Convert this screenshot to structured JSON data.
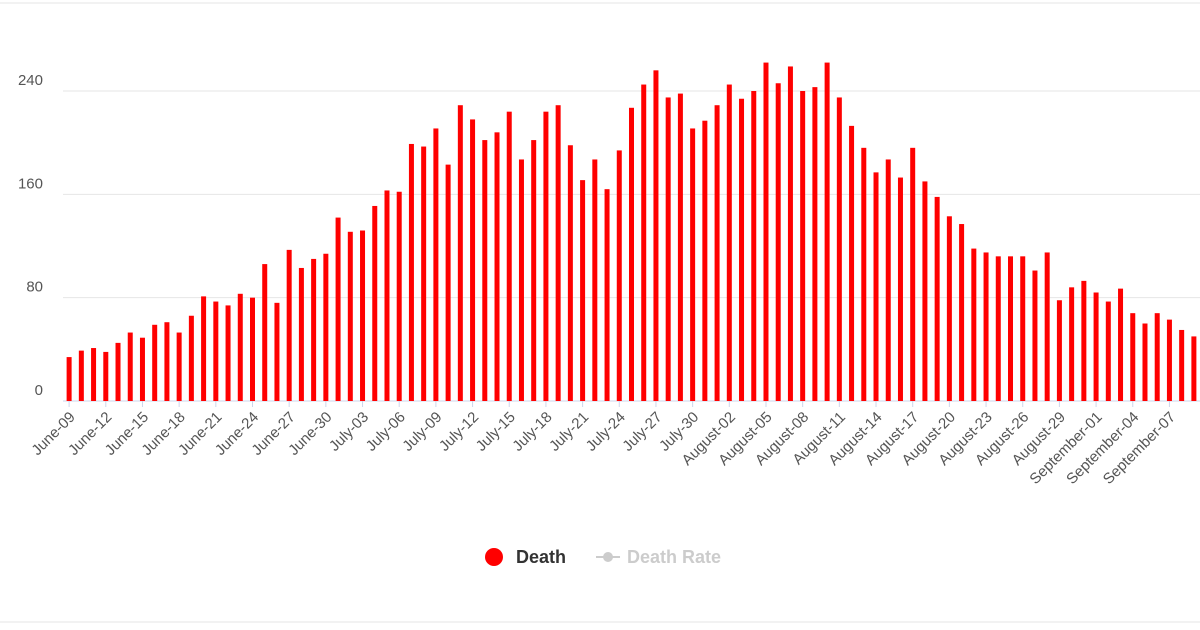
{
  "chart_data": {
    "type": "bar",
    "categories": [
      "June-09",
      null,
      null,
      "June-12",
      null,
      null,
      "June-15",
      null,
      null,
      "June-18",
      null,
      null,
      "June-21",
      null,
      null,
      "June-24",
      null,
      null,
      "June-27",
      null,
      null,
      "June-30",
      null,
      null,
      "July-03",
      null,
      null,
      "July-06",
      null,
      null,
      "July-09",
      null,
      null,
      "July-12",
      null,
      null,
      "July-15",
      null,
      null,
      "July-18",
      null,
      null,
      "July-21",
      null,
      null,
      "July-24",
      null,
      null,
      "July-27",
      null,
      null,
      "July-30",
      null,
      null,
      "August-02",
      null,
      null,
      "August-05",
      null,
      null,
      "August-08",
      null,
      null,
      "August-11",
      null,
      null,
      "August-14",
      null,
      null,
      "August-17",
      null,
      null,
      "August-20",
      null,
      null,
      "August-23",
      null,
      null,
      "August-26",
      null,
      null,
      "August-29",
      null,
      null,
      "September-01",
      null,
      null,
      "September-04",
      null,
      null,
      "September-07",
      null,
      null
    ],
    "series": [
      {
        "name": "Death",
        "color": "#ff0000",
        "values": [
          34,
          39,
          41,
          38,
          45,
          53,
          49,
          59,
          61,
          53,
          66,
          81,
          77,
          74,
          83,
          80,
          106,
          76,
          117,
          103,
          110,
          114,
          142,
          131,
          132,
          151,
          163,
          162,
          199,
          197,
          211,
          183,
          229,
          218,
          202,
          208,
          224,
          187,
          202,
          224,
          229,
          198,
          171,
          187,
          164,
          194,
          227,
          245,
          256,
          235,
          238,
          211,
          217,
          229,
          245,
          234,
          240,
          262,
          246,
          259,
          240,
          243,
          262,
          235,
          213,
          196,
          177,
          187,
          173,
          196,
          170,
          158,
          143,
          137,
          118,
          115,
          112,
          112,
          112,
          101,
          115,
          78,
          88,
          93,
          84,
          77,
          87,
          68,
          60,
          68,
          63,
          55,
          50
        ]
      }
    ],
    "hidden_series": [
      {
        "name": "Death Rate",
        "color": "#cccccc"
      }
    ],
    "ylim": [
      0,
      280
    ],
    "yticks": [
      0,
      80,
      160,
      240
    ],
    "grid": true
  }
}
